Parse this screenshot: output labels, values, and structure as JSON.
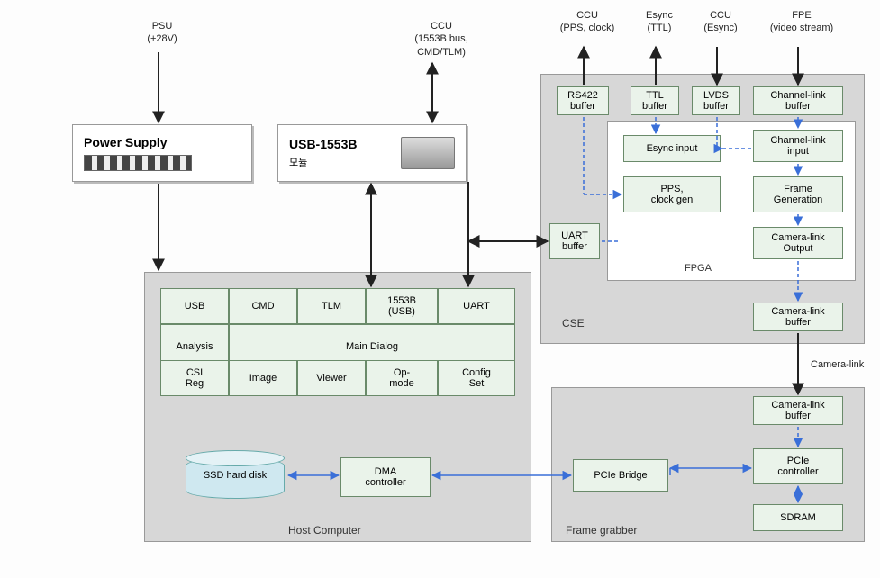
{
  "ext": {
    "psu": "PSU\n(+28V)",
    "ccu1": "CCU\n(1553B bus,\nCMD/TLM)",
    "ccu_pps": "CCU\n(PPS, clock)",
    "esync": "Esync\n(TTL)",
    "ccu_esync": "CCU\n(Esync)",
    "fpe": "FPE\n(video stream)"
  },
  "psu_box": {
    "title": "Power Supply"
  },
  "usb1553": {
    "title": "USB-1553B",
    "sub": "모듈"
  },
  "cse": {
    "label": "CSE",
    "rs422": "RS422\nbuffer",
    "ttl": "TTL\nbuffer",
    "lvds": "LVDS\nbuffer",
    "chlink_buf": "Channel-link\nbuffer",
    "uart_buf": "UART\nbuffer",
    "fpga_label": "FPGA",
    "esync_in": "Esync input",
    "pps_gen": "PPS,\nclock gen",
    "chlink_in": "Channel-link\ninput",
    "frame_gen": "Frame\nGeneration",
    "camlink_out": "Camera-link\nOutput",
    "camlink_buf": "Camera-link\nbuffer"
  },
  "host": {
    "label": "Host Computer",
    "row1": [
      "USB",
      "CMD",
      "TLM",
      "1553B\n(USB)",
      "UART"
    ],
    "analysis": "Analysis",
    "main_dialog": "Main Dialog",
    "row3": [
      "CSI\nReg",
      "Image",
      "Viewer",
      "Op-\nmode",
      "Config\nSet"
    ],
    "ssd": "SSD hard disk",
    "dma": "DMA\ncontroller"
  },
  "fg": {
    "label": "Frame grabber",
    "camlink_buf": "Camera-link\nbuffer",
    "pcie_bridge": "PCIe Bridge",
    "pcie_ctrl": "PCIe\ncontroller",
    "sdram": "SDRAM"
  },
  "link_camlink": "Camera-link",
  "colors": {
    "region_bg": "#d7d7d7",
    "node_bg": "#eaf3ea",
    "node_border": "#6a8a6a",
    "arrow_black": "#222",
    "arrow_blue": "#3a6fd8"
  }
}
